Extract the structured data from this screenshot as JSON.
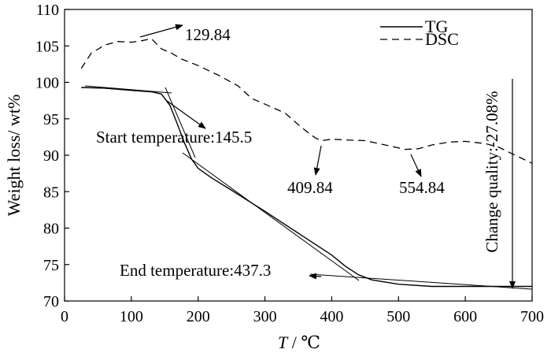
{
  "chart_data": {
    "type": "line",
    "title": "",
    "xlabel_var": "T",
    "xlabel_sep": " / ",
    "xlabel_unit": "℃",
    "ylabel": "Weight loss/ wt%",
    "xlim": [
      0,
      700
    ],
    "ylim": [
      70,
      110
    ],
    "xticks": [
      "0",
      "100",
      "200",
      "300",
      "400",
      "500",
      "600",
      "700"
    ],
    "yticks": [
      "70",
      "75",
      "80",
      "85",
      "90",
      "95",
      "100",
      "105",
      "110"
    ],
    "grid": false,
    "legend_position": "top-right",
    "series": [
      {
        "name": "TG",
        "style": "solid",
        "points": [
          [
            25,
            99.3
          ],
          [
            60,
            99.2
          ],
          [
            100,
            98.9
          ],
          [
            130,
            98.7
          ],
          [
            145,
            98.4
          ],
          [
            158,
            96.8
          ],
          [
            170,
            94.0
          ],
          [
            180,
            91.6
          ],
          [
            190,
            89.5
          ],
          [
            200,
            88.2
          ],
          [
            220,
            86.9
          ],
          [
            250,
            85.2
          ],
          [
            300,
            82.3
          ],
          [
            350,
            79.3
          ],
          [
            400,
            76.3
          ],
          [
            420,
            74.8
          ],
          [
            440,
            73.6
          ],
          [
            460,
            72.9
          ],
          [
            500,
            72.3
          ],
          [
            550,
            72.0
          ],
          [
            600,
            72.0
          ],
          [
            700,
            72.0
          ]
        ]
      },
      {
        "name": "DSC",
        "style": "dashed",
        "points": [
          [
            25,
            101.9
          ],
          [
            40,
            104.0
          ],
          [
            60,
            105.1
          ],
          [
            80,
            105.6
          ],
          [
            100,
            105.5
          ],
          [
            115,
            105.7
          ],
          [
            130,
            106.0
          ],
          [
            145,
            104.6
          ],
          [
            160,
            104.0
          ],
          [
            175,
            103.2
          ],
          [
            200,
            102.3
          ],
          [
            230,
            101.0
          ],
          [
            260,
            99.5
          ],
          [
            280,
            97.8
          ],
          [
            300,
            97.0
          ],
          [
            330,
            95.8
          ],
          [
            355,
            93.8
          ],
          [
            375,
            92.4
          ],
          [
            385,
            92.0
          ],
          [
            400,
            92.2
          ],
          [
            420,
            92.1
          ],
          [
            450,
            92.0
          ],
          [
            480,
            91.4
          ],
          [
            510,
            90.8
          ],
          [
            530,
            90.9
          ],
          [
            550,
            91.4
          ],
          [
            575,
            91.8
          ],
          [
            600,
            91.9
          ],
          [
            630,
            91.6
          ],
          [
            650,
            91.1
          ],
          [
            670,
            90.2
          ],
          [
            700,
            88.9
          ]
        ]
      }
    ],
    "annotations": [
      {
        "text": "129.84",
        "arrow": "up-right"
      },
      {
        "text": "Start temperature:145.5",
        "arrow": "down-right"
      },
      {
        "text": "409.84",
        "arrow": "down"
      },
      {
        "text": "554.84",
        "arrow": "down"
      },
      {
        "text": "End temperature:437.3",
        "arrow": "left"
      },
      {
        "text": "Change quality:-27.08%",
        "arrow": "down",
        "orientation": "vertical"
      }
    ]
  }
}
